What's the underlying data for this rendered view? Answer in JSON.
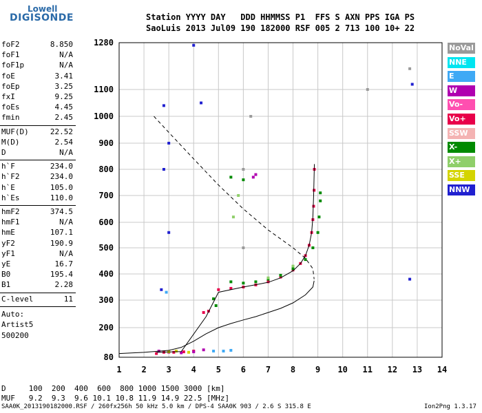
{
  "logo": {
    "line1": "Lowell",
    "line2": "DIGISONDE"
  },
  "header": {
    "row1": "Station YYYY DAY   DDD HHMMSS P1  FFS S AXN PPS IGA PS",
    "row2": "SaoLuis 2013 Jul09 190 182000 RSF 005 2 713 100 10+ 22"
  },
  "params_group1": [
    {
      "name": "foF2",
      "value": "8.850"
    },
    {
      "name": "foF1",
      "value": "N/A"
    },
    {
      "name": "foF1p",
      "value": "N/A"
    },
    {
      "name": "foE",
      "value": "3.41"
    },
    {
      "name": "foEp",
      "value": "3.25"
    },
    {
      "name": "fxI",
      "value": "9.25"
    },
    {
      "name": "foEs",
      "value": "4.45"
    },
    {
      "name": "fmin",
      "value": "2.45"
    }
  ],
  "params_group2": [
    {
      "name": "MUF(D)",
      "value": "22.52"
    },
    {
      "name": "M(D)",
      "value": "2.54"
    },
    {
      "name": "D",
      "value": "N/A"
    }
  ],
  "params_group3": [
    {
      "name": "h`F",
      "value": "234.0"
    },
    {
      "name": "h`F2",
      "value": "234.0"
    },
    {
      "name": "h`E",
      "value": "105.0"
    },
    {
      "name": "h`Es",
      "value": "110.0"
    }
  ],
  "params_group4": [
    {
      "name": "hmF2",
      "value": "374.5"
    },
    {
      "name": "hmF1",
      "value": "N/A"
    },
    {
      "name": "hmE",
      "value": "107.1"
    },
    {
      "name": "yF2",
      "value": "190.9"
    },
    {
      "name": "yF1",
      "value": "N/A"
    },
    {
      "name": "yE",
      "value": "16.7"
    },
    {
      "name": "B0",
      "value": "195.4"
    },
    {
      "name": "B1",
      "value": "2.28"
    }
  ],
  "clevel": {
    "name": "C-level",
    "value": "11"
  },
  "auto": {
    "line1": "Auto:",
    "line2": "Artist5",
    "line3": "500200"
  },
  "legend": [
    {
      "label": "NoVal",
      "color": "#9a9a9a"
    },
    {
      "label": "NNE",
      "color": "#00e5f0"
    },
    {
      "label": "E",
      "color": "#3fa9f5"
    },
    {
      "label": "W",
      "color": "#b000b0"
    },
    {
      "label": "Vo-",
      "color": "#ff4fb0"
    },
    {
      "label": "Vo+",
      "color": "#e8004a"
    },
    {
      "label": "SSW",
      "color": "#f4b3b3"
    },
    {
      "label": "X-",
      "color": "#008a00"
    },
    {
      "label": "X+",
      "color": "#8fcf6a"
    },
    {
      "label": "SSE",
      "color": "#d4d400"
    },
    {
      "label": "NNW",
      "color": "#2020d0"
    }
  ],
  "muf_table": {
    "d_row": "D     100  200  400  600  800 1000 1500 3000 [km]",
    "muf_row": "MUF   9.2  9.3  9.6 10.1 10.8 11.9 14.9 22.5 [MHz]"
  },
  "footer": {
    "left": "SAA0K_2013190182000.RSF / 260fx256h 50 kHz 5.0 km / DPS-4 SAA0K 903 / 2.6 S 315.8 E",
    "right": "Ion2Png 1.3.17"
  },
  "chart_data": {
    "type": "scatter",
    "xlim": [
      1,
      14
    ],
    "ylim": [
      80,
      1280
    ],
    "x_ticks": [
      1,
      2,
      3,
      4,
      5,
      6,
      7,
      8,
      9,
      10,
      11,
      12,
      13,
      14
    ],
    "y_ticks": [
      80,
      200,
      300,
      400,
      500,
      600,
      700,
      800,
      900,
      1000,
      1100,
      1280
    ],
    "series": [
      {
        "name": "Vo+",
        "color": "#e8004a",
        "points": [
          [
            5.0,
            340
          ],
          [
            5.5,
            345
          ],
          [
            6.0,
            350
          ],
          [
            6.5,
            358
          ],
          [
            7.0,
            370
          ],
          [
            7.5,
            388
          ],
          [
            8.0,
            415
          ],
          [
            8.3,
            440
          ],
          [
            8.5,
            470
          ],
          [
            8.65,
            510
          ],
          [
            8.75,
            560
          ],
          [
            8.8,
            610
          ],
          [
            8.83,
            660
          ],
          [
            8.85,
            720
          ],
          [
            8.86,
            800
          ],
          [
            2.5,
            95
          ],
          [
            2.8,
            100
          ],
          [
            3.2,
            100
          ],
          [
            3.6,
            102
          ],
          [
            4.0,
            105
          ],
          [
            4.4,
            255
          ],
          [
            4.6,
            260
          ]
        ]
      },
      {
        "name": "X-",
        "color": "#008a00",
        "points": [
          [
            5.5,
            370
          ],
          [
            6.0,
            365
          ],
          [
            6.5,
            370
          ],
          [
            7.0,
            380
          ],
          [
            7.5,
            395
          ],
          [
            8.0,
            420
          ],
          [
            8.5,
            455
          ],
          [
            8.8,
            500
          ],
          [
            9.0,
            560
          ],
          [
            9.05,
            620
          ],
          [
            9.1,
            680
          ],
          [
            9.1,
            710
          ],
          [
            4.9,
            280
          ],
          [
            4.8,
            305
          ],
          [
            6.0,
            760
          ],
          [
            5.5,
            770
          ]
        ]
      },
      {
        "name": "W",
        "color": "#b000b0",
        "points": [
          [
            2.6,
            105
          ],
          [
            3.0,
            100
          ],
          [
            3.5,
            98
          ],
          [
            4.0,
            102
          ],
          [
            4.4,
            110
          ],
          [
            6.4,
            770
          ],
          [
            6.5,
            780
          ]
        ]
      },
      {
        "name": "NNW",
        "color": "#2020d0",
        "points": [
          [
            2.8,
            1040
          ],
          [
            3.0,
            900
          ],
          [
            4.0,
            1270
          ],
          [
            4.3,
            1050
          ],
          [
            2.8,
            800
          ],
          [
            3.0,
            560
          ],
          [
            2.7,
            340
          ],
          [
            12.7,
            380
          ],
          [
            12.8,
            1120
          ]
        ]
      },
      {
        "name": "E",
        "color": "#3fa9f5",
        "points": [
          [
            4.8,
            105
          ],
          [
            5.2,
            105
          ],
          [
            5.5,
            108
          ],
          [
            2.9,
            330
          ]
        ]
      },
      {
        "name": "SSE",
        "color": "#d4d400",
        "points": [
          [
            3.0,
            102
          ],
          [
            3.3,
            105
          ],
          [
            3.8,
            100
          ]
        ]
      },
      {
        "name": "X+",
        "color": "#8fcf6a",
        "points": [
          [
            7.0,
            385
          ],
          [
            8.0,
            430
          ],
          [
            5.6,
            620
          ],
          [
            5.8,
            700
          ]
        ]
      },
      {
        "name": "NoVal",
        "color": "#9a9a9a",
        "points": [
          [
            6.0,
            500
          ],
          [
            6.0,
            800
          ],
          [
            6.3,
            1000
          ],
          [
            11.0,
            1100
          ],
          [
            12.7,
            1180
          ]
        ]
      }
    ],
    "model_profile": [
      [
        1.0,
        95
      ],
      [
        2.0,
        100
      ],
      [
        3.0,
        108
      ],
      [
        3.5,
        120
      ],
      [
        4.0,
        145
      ],
      [
        4.5,
        175
      ],
      [
        5.0,
        200
      ],
      [
        5.5,
        215
      ],
      [
        6.0,
        228
      ],
      [
        6.5,
        240
      ],
      [
        7.0,
        255
      ],
      [
        7.5,
        270
      ],
      [
        8.0,
        290
      ],
      [
        8.5,
        320
      ],
      [
        8.8,
        350
      ],
      [
        8.85,
        374
      ]
    ],
    "model_trace": [
      [
        2.5,
        100
      ],
      [
        3.5,
        103
      ],
      [
        4.5,
        240
      ],
      [
        5.0,
        330
      ],
      [
        6.0,
        350
      ],
      [
        7.0,
        368
      ],
      [
        7.5,
        385
      ],
      [
        8.0,
        412
      ],
      [
        8.3,
        440
      ],
      [
        8.5,
        470
      ],
      [
        8.65,
        510
      ],
      [
        8.75,
        560
      ],
      [
        8.8,
        620
      ],
      [
        8.83,
        700
      ],
      [
        8.85,
        780
      ],
      [
        8.86,
        820
      ]
    ],
    "muf_curve": [
      [
        2.4,
        1000
      ],
      [
        3.0,
        940
      ],
      [
        4.0,
        840
      ],
      [
        5.0,
        740
      ],
      [
        6.0,
        650
      ],
      [
        7.0,
        570
      ],
      [
        8.0,
        500
      ],
      [
        8.5,
        460
      ],
      [
        8.8,
        420
      ],
      [
        8.85,
        380
      ]
    ]
  }
}
